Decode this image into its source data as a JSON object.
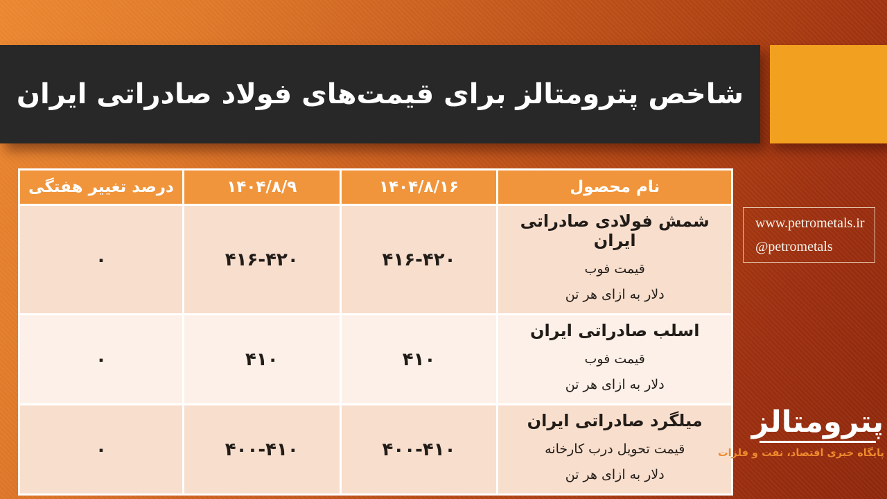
{
  "header": {
    "title": "شاخص پترومتالز برای قیمت‌های فولاد صادراتی ایران"
  },
  "table": {
    "headers": [
      "نام محصول",
      "۱۴۰۴/۸/۱۶",
      "۱۴۰۴/۸/۹",
      "درصد تغییر هفتگی"
    ],
    "rows": [
      {
        "product": "شمش فولادی صادراتی ایران",
        "price_basis": "قیمت فوب",
        "unit": "دلار به ازای هر تن",
        "price_current": "۴۱۶-۴۲۰",
        "price_previous": "۴۱۶-۴۲۰",
        "weekly_change": "۰"
      },
      {
        "product": "اسلب صادراتی ایران",
        "price_basis": "قیمت فوب",
        "unit": "دلار به ازای هر تن",
        "price_current": "۴۱۰",
        "price_previous": "۴۱۰",
        "weekly_change": "۰"
      },
      {
        "product": "میلگرد صادراتی ایران",
        "price_basis": "قیمت تحویل درب کارخانه",
        "unit": "دلار به ازای هر تن",
        "price_current": "۴۰۰-۴۱۰",
        "price_previous": "۴۰۰-۴۱۰",
        "weekly_change": "۰"
      }
    ]
  },
  "contact": {
    "website": "www.petrometals.ir",
    "handle": "@petrometals"
  },
  "logo": {
    "name": "پترومتالز",
    "tagline": "پایگاه خبری اقتصاد، نفت و فلزات"
  },
  "colors": {
    "header_bar": "#282828",
    "accent_orange": "#f2a01f",
    "table_header_orange": "#f0953c",
    "row_peach_dark": "#f8decd",
    "row_peach_light": "#fcf0e8",
    "background_top_left": "#ec8831",
    "background_bottom_right": "#8f280c",
    "tagline_orange": "#ef8a2e"
  }
}
